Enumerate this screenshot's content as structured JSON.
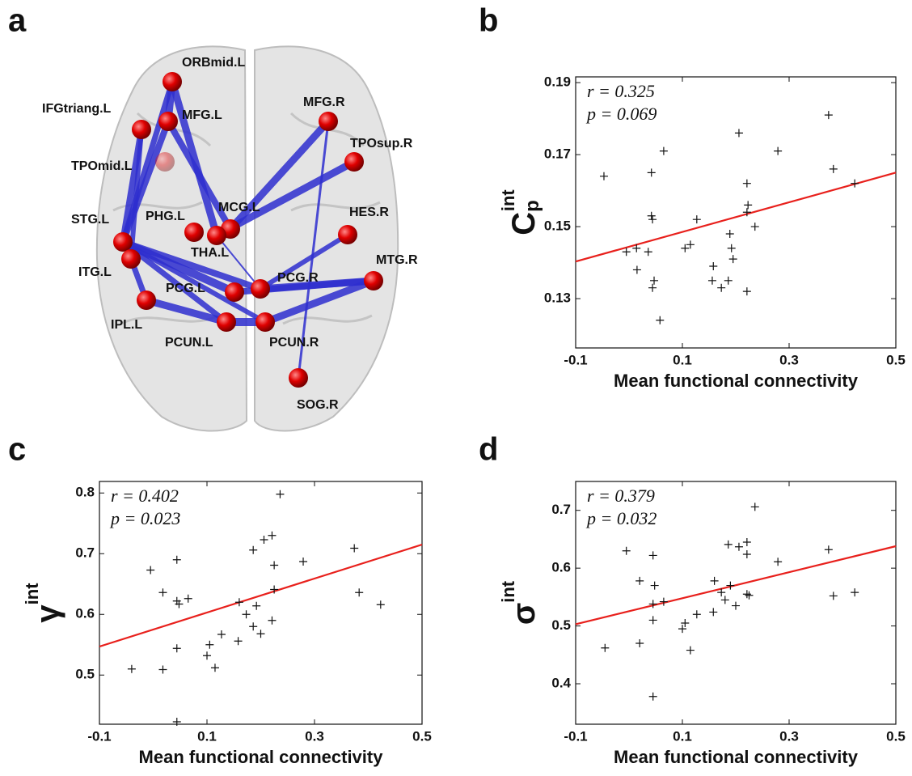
{
  "panel_labels": [
    "a",
    "b",
    "c",
    "d"
  ],
  "network": {
    "nodes": [
      "ORBmid.L",
      "MFG.L",
      "IFGtriang.L",
      "MFG.R",
      "TPOsup.R",
      "TPOmid.L",
      "MCG.L",
      "PHG.L",
      "HES.R",
      "STG.L",
      "THA.L",
      "ITG.L",
      "MTG.R",
      "PCG.L",
      "PCG.R",
      "IPL.L",
      "PCUN.L",
      "PCUN.R",
      "SOG.R"
    ]
  },
  "chart_data": [
    {
      "type": "scatter",
      "ylabel": {
        "base": "C",
        "sub": "p",
        "sup": "int"
      },
      "xlabel": "Mean functional connectivity",
      "annotations": [
        "r = 0.325",
        "p = 0.069"
      ],
      "color": "#111111",
      "fit_color": "#e8201c",
      "x": [
        -0.047,
        0.042,
        0.065,
        0.042,
        0.044,
        0.036,
        0.047,
        0.044,
        -0.005,
        0.014,
        0.015,
        0.058,
        0.127,
        0.105,
        0.115,
        0.206,
        0.221,
        0.223,
        0.221,
        0.236,
        0.189,
        0.192,
        0.195,
        0.158,
        0.156,
        0.173,
        0.186,
        0.221,
        0.279,
        0.374,
        0.383,
        0.423
      ],
      "values": [
        0.164,
        0.165,
        0.171,
        0.153,
        0.152,
        0.143,
        0.135,
        0.133,
        0.143,
        0.144,
        0.138,
        0.124,
        0.152,
        0.144,
        0.145,
        0.176,
        0.162,
        0.156,
        0.154,
        0.15,
        0.148,
        0.144,
        0.141,
        0.139,
        0.135,
        0.133,
        0.135,
        0.132,
        0.171,
        0.181,
        0.166,
        0.162
      ],
      "fit": {
        "x": [
          -0.1,
          0.5
        ],
        "values": [
          0.1403,
          0.165
        ]
      },
      "xlim": [
        -0.1,
        0.5
      ],
      "xticks": [
        -0.1,
        0.1,
        0.3,
        0.5
      ],
      "ylim": [
        0.1163,
        0.1916
      ],
      "yticks": [
        0.13,
        0.15,
        0.17,
        0.19
      ]
    },
    {
      "type": "scatter",
      "ylabel": {
        "base": "γ",
        "sub": "",
        "sup": "int"
      },
      "xlabel": "Mean functional connectivity",
      "annotations": [
        "r = 0.402",
        "p = 0.023"
      ],
      "color": "#111111",
      "fit_color": "#e8201c",
      "x": [
        -0.04,
        -0.005,
        0.018,
        0.018,
        0.044,
        0.044,
        0.048,
        0.044,
        0.044,
        0.065,
        0.1,
        0.105,
        0.115,
        0.127,
        0.158,
        0.16,
        0.173,
        0.186,
        0.186,
        0.192,
        0.2,
        0.206,
        0.221,
        0.221,
        0.225,
        0.225,
        0.236,
        0.279,
        0.374,
        0.383,
        0.423
      ],
      "values": [
        0.51,
        0.673,
        0.636,
        0.509,
        0.69,
        0.622,
        0.617,
        0.544,
        0.423,
        0.626,
        0.532,
        0.55,
        0.512,
        0.567,
        0.556,
        0.62,
        0.6,
        0.706,
        0.58,
        0.614,
        0.568,
        0.723,
        0.73,
        0.59,
        0.681,
        0.641,
        0.798,
        0.687,
        0.709,
        0.636,
        0.616
      ],
      "fit": {
        "x": [
          -0.1,
          0.5
        ],
        "values": [
          0.547,
          0.715
        ]
      },
      "xlim": [
        -0.1,
        0.5
      ],
      "xticks": [
        -0.1,
        0.1,
        0.3,
        0.5
      ],
      "ylim": [
        0.419,
        0.819
      ],
      "yticks": [
        0.5,
        0.6,
        0.7,
        0.8
      ]
    },
    {
      "type": "scatter",
      "ylabel": {
        "base": "σ",
        "sub": "",
        "sup": "int"
      },
      "xlabel": "Mean functional connectivity",
      "annotations": [
        "r = 0.379",
        "p = 0.032"
      ],
      "color": "#111111",
      "fit_color": "#e8201c",
      "x": [
        -0.045,
        -0.005,
        0.02,
        0.02,
        0.045,
        0.048,
        0.045,
        0.045,
        0.045,
        0.065,
        0.1,
        0.105,
        0.115,
        0.127,
        0.158,
        0.16,
        0.173,
        0.18,
        0.186,
        0.19,
        0.2,
        0.206,
        0.221,
        0.221,
        0.221,
        0.225,
        0.236,
        0.279,
        0.374,
        0.383,
        0.423
      ],
      "values": [
        0.462,
        0.63,
        0.578,
        0.47,
        0.622,
        0.57,
        0.538,
        0.51,
        0.378,
        0.542,
        0.495,
        0.505,
        0.458,
        0.52,
        0.524,
        0.578,
        0.558,
        0.545,
        0.641,
        0.57,
        0.535,
        0.637,
        0.645,
        0.624,
        0.555,
        0.553,
        0.706,
        0.611,
        0.632,
        0.552,
        0.558
      ],
      "fit": {
        "x": [
          -0.1,
          0.5
        ],
        "values": [
          0.503,
          0.638
        ]
      },
      "xlim": [
        -0.1,
        0.5
      ],
      "xticks": [
        -0.1,
        0.1,
        0.3,
        0.5
      ],
      "ylim": [
        0.33,
        0.75
      ],
      "yticks": [
        0.4,
        0.5,
        0.6,
        0.7
      ]
    }
  ]
}
